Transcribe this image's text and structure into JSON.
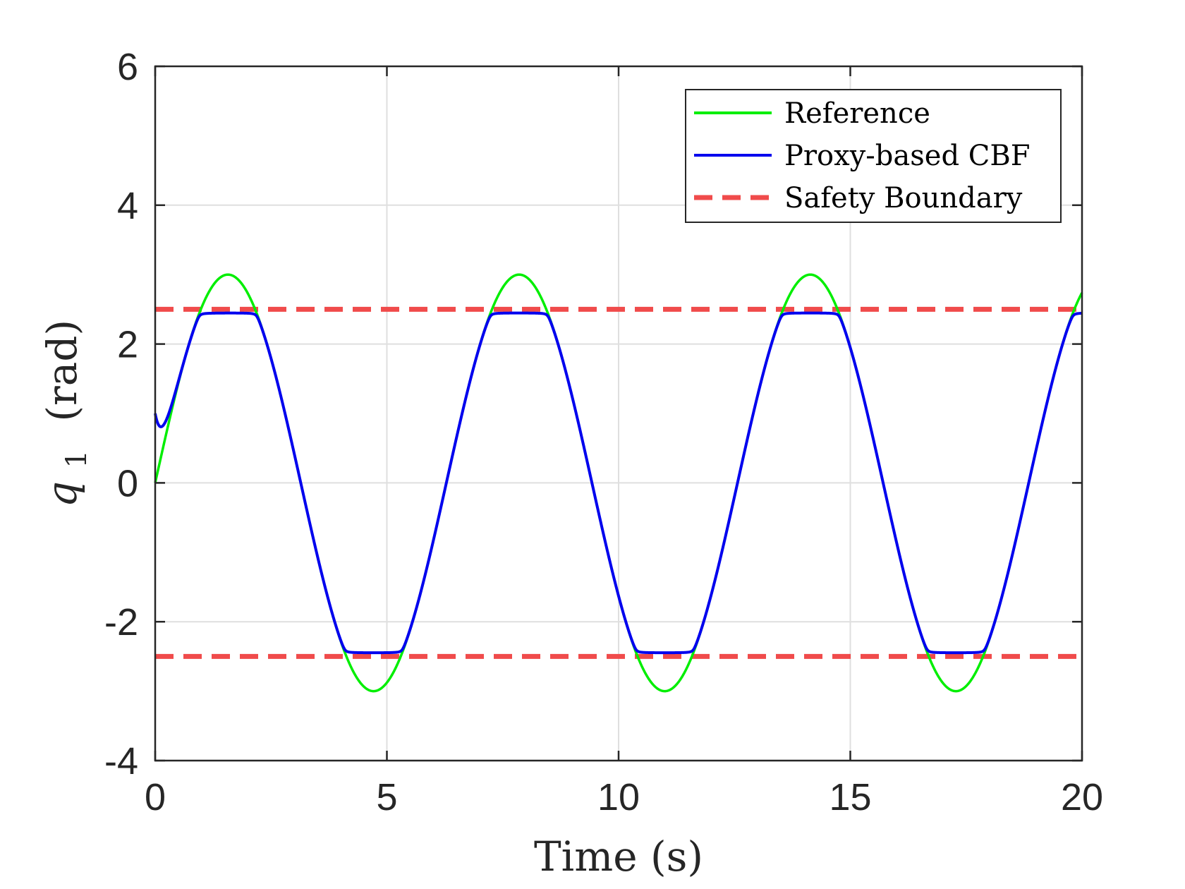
{
  "chart_data": {
    "type": "line",
    "title": "",
    "xlabel": "Time (s)",
    "ylabel": {
      "symbol": "q",
      "subscript": "1",
      "unit": "(rad)"
    },
    "xlim": [
      0,
      20
    ],
    "ylim": [
      -4,
      6
    ],
    "xticks": [
      0,
      5,
      10,
      15,
      20
    ],
    "xtick_labels": [
      "0",
      "5",
      "10",
      "15",
      "20"
    ],
    "yticks": [
      -4,
      -2,
      0,
      2,
      4,
      6
    ],
    "ytick_labels": [
      "-4",
      "-2",
      "0",
      "2",
      "4",
      "6"
    ],
    "grid": true,
    "legend_position": "top-right",
    "series": [
      {
        "name": "Reference",
        "color": "#00ee00",
        "style": "solid",
        "function": "3*sin(t)",
        "description": "q1 reference trajectory, amplitude 3 rad, period 2*pi s"
      },
      {
        "name": "Proxy-based CBF",
        "color": "#0000ee",
        "style": "solid",
        "initial_value": 1.0,
        "saturation": 2.45,
        "description": "tracks reference, clipped at about +/-2.45 rad"
      },
      {
        "name": "Safety Boundary",
        "color": "#f04b4b",
        "style": "dashed",
        "values": [
          2.5,
          -2.5
        ]
      }
    ]
  }
}
